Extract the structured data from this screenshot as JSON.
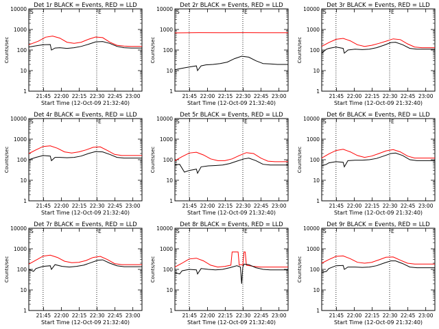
{
  "chart_data": [
    {
      "type": "line",
      "title": "Det 1r BLACK = Events, RED = LLD",
      "corner_marks": [
        "S",
        "E"
      ],
      "xlabel": "Start Time (12-Oct-09 21:32:40)",
      "ylabel": "Counts/sec",
      "x_ticks": [
        "21:45",
        "22:00",
        "22:15",
        "22:30",
        "22:45",
        "23:00"
      ],
      "y_ticks": [
        "1",
        "10",
        "100",
        "1000",
        "10000"
      ],
      "y_scale": "log",
      "ylim": [
        1,
        10000
      ],
      "xlim_minutes": [
        0,
        95
      ],
      "dotted_lines_minutes": [
        12,
        57
      ],
      "series": [
        {
          "color": "#ff0000",
          "x": [
            0,
            8,
            14,
            20,
            26,
            32,
            38,
            44,
            50,
            56,
            62,
            68,
            74,
            80,
            86,
            92,
            95
          ],
          "y": [
            180,
            270,
            420,
            480,
            380,
            240,
            210,
            240,
            330,
            430,
            400,
            240,
            170,
            155,
            150,
            150,
            150
          ]
        },
        {
          "color": "#000000",
          "x": [
            0,
            6,
            12,
            18,
            19,
            22,
            26,
            32,
            38,
            44,
            50,
            56,
            62,
            68,
            74,
            80,
            86,
            92,
            95
          ],
          "y": [
            140,
            160,
            180,
            185,
            100,
            125,
            130,
            120,
            130,
            150,
            190,
            250,
            260,
            210,
            150,
            130,
            125,
            125,
            125
          ]
        }
      ]
    },
    {
      "type": "line",
      "title": "Det 2r BLACK = Events, RED = LLD",
      "corner_marks": [
        "S",
        "E"
      ],
      "xlabel": "Start Time (12-Oct-09 21:32:40)",
      "ylabel": "Counts/sec",
      "x_ticks": [
        "21:45",
        "22:00",
        "22:15",
        "22:30",
        "22:45",
        "23:00"
      ],
      "y_ticks": [
        "1",
        "10",
        "100",
        "1000",
        "10000"
      ],
      "y_scale": "log",
      "ylim": [
        1,
        10000
      ],
      "xlim_minutes": [
        0,
        95
      ],
      "dotted_lines_minutes": [
        12,
        57
      ],
      "series": [
        {
          "color": "#ff0000",
          "x": [
            0,
            20,
            40,
            60,
            80,
            95
          ],
          "y": [
            680,
            700,
            690,
            700,
            690,
            690
          ]
        },
        {
          "color": "#000000",
          "x": [
            0,
            6,
            12,
            18,
            19,
            22,
            26,
            32,
            38,
            44,
            50,
            56,
            62,
            68,
            74,
            80,
            86,
            92,
            95
          ],
          "y": [
            11,
            13,
            15,
            17,
            10,
            17,
            19,
            20,
            22,
            26,
            38,
            50,
            45,
            30,
            22,
            21,
            20,
            20,
            20
          ]
        }
      ]
    },
    {
      "type": "line",
      "title": "Det 3r BLACK = Events, RED = LLD",
      "corner_marks": [
        "S",
        "E"
      ],
      "xlabel": "Start Time (12-Oct-09 21:32:40)",
      "ylabel": "Counts/sec",
      "x_ticks": [
        "21:45",
        "22:00",
        "22:15",
        "22:30",
        "22:45",
        "23:00"
      ],
      "y_ticks": [
        "1",
        "10",
        "100",
        "1000",
        "10000"
      ],
      "y_scale": "log",
      "ylim": [
        1,
        10000
      ],
      "xlim_minutes": [
        0,
        95
      ],
      "dotted_lines_minutes": [
        12,
        57
      ],
      "series": [
        {
          "color": "#ff0000",
          "x": [
            0,
            6,
            12,
            18,
            24,
            30,
            36,
            42,
            48,
            54,
            60,
            66,
            72,
            78,
            84,
            90,
            95
          ],
          "y": [
            150,
            230,
            330,
            370,
            280,
            180,
            150,
            170,
            210,
            270,
            350,
            320,
            200,
            140,
            130,
            130,
            130
          ]
        },
        {
          "color": "#000000",
          "x": [
            0,
            4,
            6,
            12,
            18,
            19,
            22,
            28,
            34,
            40,
            46,
            52,
            58,
            62,
            68,
            74,
            80,
            86,
            92,
            95
          ],
          "y": [
            70,
            110,
            120,
            140,
            120,
            70,
            100,
            110,
            105,
            110,
            130,
            170,
            230,
            240,
            180,
            120,
            110,
            110,
            110,
            110
          ]
        }
      ]
    },
    {
      "type": "line",
      "title": "Det 4r BLACK = Events, RED = LLD",
      "corner_marks": [
        "S",
        "E"
      ],
      "xlabel": "Start Time (12-Oct-09 21:32:40)",
      "ylabel": "Counts/sec",
      "x_ticks": [
        "21:45",
        "22:00",
        "22:15",
        "22:30",
        "22:45",
        "23:00"
      ],
      "y_ticks": [
        "1",
        "10",
        "100",
        "1000",
        "10000"
      ],
      "y_scale": "log",
      "ylim": [
        1,
        10000
      ],
      "xlim_minutes": [
        0,
        95
      ],
      "dotted_lines_minutes": [
        12,
        57
      ],
      "series": [
        {
          "color": "#ff0000",
          "x": [
            0,
            6,
            12,
            18,
            24,
            30,
            36,
            42,
            48,
            54,
            60,
            66,
            72,
            78,
            84,
            90,
            95
          ],
          "y": [
            200,
            300,
            440,
            470,
            360,
            240,
            210,
            240,
            300,
            400,
            420,
            280,
            180,
            160,
            160,
            160,
            160
          ]
        },
        {
          "color": "#000000",
          "x": [
            0,
            6,
            12,
            18,
            19,
            22,
            26,
            32,
            38,
            44,
            50,
            56,
            62,
            68,
            74,
            80,
            86,
            92,
            95
          ],
          "y": [
            100,
            130,
            160,
            150,
            90,
            130,
            130,
            125,
            130,
            150,
            200,
            250,
            240,
            180,
            130,
            120,
            120,
            120,
            120
          ]
        }
      ]
    },
    {
      "type": "line",
      "title": "Det 5r BLACK = Events, RED = LLD",
      "corner_marks": [
        "S",
        "E"
      ],
      "xlabel": "Start Time (12-Oct-09 21:32:40)",
      "ylabel": "Counts/sec",
      "x_ticks": [
        "21:45",
        "22:00",
        "22:15",
        "22:30",
        "22:45",
        "23:00"
      ],
      "y_ticks": [
        "1",
        "10",
        "100",
        "1000",
        "10000"
      ],
      "y_scale": "log",
      "ylim": [
        1,
        10000
      ],
      "xlim_minutes": [
        0,
        95
      ],
      "dotted_lines_minutes": [
        12,
        57
      ],
      "series": [
        {
          "color": "#ff0000",
          "x": [
            0,
            6,
            12,
            18,
            24,
            30,
            36,
            42,
            48,
            54,
            60,
            66,
            72,
            78,
            84,
            90,
            95
          ],
          "y": [
            90,
            140,
            210,
            230,
            170,
            110,
            90,
            90,
            110,
            160,
            220,
            200,
            120,
            85,
            80,
            80,
            80
          ]
        },
        {
          "color": "#000000",
          "x": [
            0,
            4,
            8,
            12,
            18,
            19,
            22,
            28,
            34,
            40,
            46,
            52,
            58,
            62,
            68,
            74,
            80,
            86,
            92,
            95
          ],
          "y": [
            55,
            60,
            25,
            30,
            35,
            22,
            45,
            50,
            52,
            55,
            65,
            85,
            110,
            120,
            90,
            60,
            55,
            55,
            55,
            55
          ]
        }
      ]
    },
    {
      "type": "line",
      "title": "Det 6r BLACK = Events, RED = LLD",
      "corner_marks": [
        "S",
        "E"
      ],
      "xlabel": "Start Time (12-Oct-09 21:32:40)",
      "ylabel": "Counts/sec",
      "x_ticks": [
        "21:45",
        "22:00",
        "22:15",
        "22:30",
        "22:45",
        "23:00"
      ],
      "y_ticks": [
        "1",
        "10",
        "100",
        "1000",
        "10000"
      ],
      "y_scale": "log",
      "ylim": [
        1,
        10000
      ],
      "xlim_minutes": [
        0,
        95
      ],
      "dotted_lines_minutes": [
        12,
        57
      ],
      "series": [
        {
          "color": "#ff0000",
          "x": [
            0,
            6,
            12,
            18,
            24,
            30,
            36,
            42,
            48,
            54,
            60,
            66,
            72,
            78,
            84,
            90,
            95
          ],
          "y": [
            120,
            190,
            280,
            320,
            240,
            160,
            130,
            150,
            200,
            270,
            310,
            240,
            150,
            120,
            120,
            120,
            120
          ]
        },
        {
          "color": "#000000",
          "x": [
            0,
            4,
            6,
            12,
            18,
            19,
            22,
            28,
            34,
            40,
            46,
            52,
            58,
            62,
            68,
            74,
            80,
            86,
            92,
            95
          ],
          "y": [
            50,
            60,
            70,
            80,
            75,
            45,
            90,
            95,
            95,
            100,
            115,
            150,
            200,
            210,
            160,
            100,
            90,
            90,
            90,
            90
          ]
        }
      ]
    },
    {
      "type": "line",
      "title": "Det 7r BLACK = Events, RED = LLD",
      "corner_marks": [
        "S",
        "E"
      ],
      "xlabel": "Start Time (12-Oct-09 21:32:40)",
      "ylabel": "Counts/sec",
      "x_ticks": [
        "21:45",
        "22:00",
        "22:15",
        "22:30",
        "22:45",
        "23:00"
      ],
      "y_ticks": [
        "1",
        "10",
        "100",
        "1000",
        "10000"
      ],
      "y_scale": "log",
      "ylim": [
        1,
        10000
      ],
      "xlim_minutes": [
        0,
        95
      ],
      "dotted_lines_minutes": [
        12,
        57
      ],
      "series": [
        {
          "color": "#ff0000",
          "x": [
            0,
            6,
            12,
            18,
            24,
            30,
            36,
            42,
            48,
            54,
            60,
            66,
            72,
            78,
            84,
            90,
            95
          ],
          "y": [
            180,
            280,
            440,
            490,
            380,
            250,
            210,
            220,
            270,
            380,
            430,
            300,
            190,
            170,
            170,
            170,
            170
          ]
        },
        {
          "color": "#000000",
          "x": [
            0,
            4,
            6,
            12,
            18,
            19,
            22,
            28,
            34,
            40,
            46,
            52,
            58,
            62,
            68,
            74,
            80,
            86,
            92,
            95
          ],
          "y": [
            100,
            80,
            110,
            140,
            150,
            100,
            170,
            140,
            130,
            140,
            160,
            210,
            280,
            290,
            200,
            150,
            135,
            135,
            135,
            135
          ]
        }
      ]
    },
    {
      "type": "line",
      "title": "Det 8r BLACK = Events, RED = LLD",
      "corner_marks": [
        "S",
        "E"
      ],
      "xlabel": "Start Time (12-Oct-09 21:32:40)",
      "ylabel": "Counts/sec",
      "x_ticks": [
        "21:45",
        "22:00",
        "22:15",
        "22:30",
        "22:45",
        "23:00"
      ],
      "y_ticks": [
        "1",
        "10",
        "100",
        "1000",
        "10000"
      ],
      "y_scale": "log",
      "ylim": [
        1,
        10000
      ],
      "xlim_minutes": [
        0,
        95
      ],
      "dotted_lines_minutes": [
        12,
        57
      ],
      "series": [
        {
          "color": "#ff0000",
          "x": [
            0,
            6,
            12,
            18,
            24,
            30,
            36,
            42,
            47,
            48,
            53,
            54,
            55,
            56,
            57,
            58,
            59,
            60,
            66,
            72,
            78,
            84,
            90,
            95
          ],
          "y": [
            130,
            200,
            320,
            350,
            260,
            160,
            130,
            140,
            160,
            700,
            700,
            160,
            170,
            170,
            160,
            700,
            700,
            160,
            140,
            130,
            130,
            130,
            130,
            130
          ]
        },
        {
          "color": "#000000",
          "x": [
            0,
            4,
            6,
            12,
            18,
            19,
            22,
            28,
            34,
            40,
            46,
            52,
            55,
            56,
            57,
            58,
            62,
            68,
            74,
            80,
            86,
            92,
            95
          ],
          "y": [
            70,
            60,
            85,
            100,
            95,
            60,
            110,
            100,
            95,
            100,
            120,
            150,
            130,
            20,
            130,
            180,
            170,
            120,
            100,
            95,
            95,
            95,
            95
          ]
        }
      ]
    },
    {
      "type": "line",
      "title": "Det 9r BLACK = Events, RED = LLD",
      "corner_marks": [
        "S",
        "E"
      ],
      "xlabel": "Start Time (12-Oct-09 21:32:40)",
      "ylabel": "Counts/sec",
      "x_ticks": [
        "21:45",
        "22:00",
        "22:15",
        "22:30",
        "22:45",
        "23:00"
      ],
      "y_ticks": [
        "1",
        "10",
        "100",
        "1000",
        "10000"
      ],
      "y_scale": "log",
      "ylim": [
        1,
        10000
      ],
      "xlim_minutes": [
        0,
        95
      ],
      "dotted_lines_minutes": [
        12,
        57
      ],
      "series": [
        {
          "color": "#ff0000",
          "x": [
            0,
            6,
            12,
            18,
            24,
            30,
            36,
            42,
            48,
            54,
            60,
            66,
            72,
            78,
            84,
            90,
            95
          ],
          "y": [
            200,
            300,
            430,
            450,
            330,
            220,
            200,
            220,
            290,
            390,
            400,
            280,
            200,
            180,
            180,
            180,
            180
          ]
        },
        {
          "color": "#000000",
          "x": [
            0,
            4,
            6,
            12,
            18,
            19,
            22,
            28,
            34,
            40,
            46,
            52,
            58,
            62,
            68,
            74,
            80,
            86,
            92,
            95
          ],
          "y": [
            70,
            80,
            110,
            150,
            155,
            100,
            130,
            130,
            125,
            130,
            150,
            200,
            260,
            260,
            190,
            130,
            120,
            120,
            120,
            120
          ]
        }
      ]
    }
  ]
}
